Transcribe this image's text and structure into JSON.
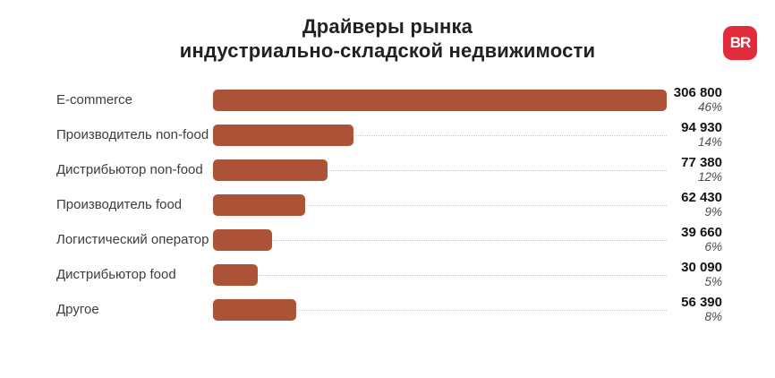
{
  "title": {
    "line1": "Драйверы рынка",
    "line2": "индустриально-складской недвижимости"
  },
  "logo": {
    "text": "BR",
    "bg_color": "#E12A3A",
    "fg_color": "#FFFFFF"
  },
  "chart_data": {
    "type": "bar",
    "orientation": "horizontal",
    "title": "Драйверы рынка индустриально-складской недвижимости",
    "categories": [
      "E-commerce",
      "Производитель non-food",
      "Дистрибьютор non-food",
      "Производитель food",
      "Логистический оператор",
      "Дистрибьютор food",
      "Другое"
    ],
    "values": [
      306800,
      94930,
      77380,
      62430,
      39660,
      30090,
      56390
    ],
    "value_labels": [
      "306 800",
      "94 930",
      "77 380",
      "62 430",
      "39 660",
      "30 090",
      "56 390"
    ],
    "percent_labels": [
      "46%",
      "14%",
      "12%",
      "9%",
      "6%",
      "5%",
      "8%"
    ],
    "max_value": 306800,
    "bar_color": "#AC5237",
    "leader_line": "dotted",
    "legend": "none",
    "grid": "off"
  }
}
